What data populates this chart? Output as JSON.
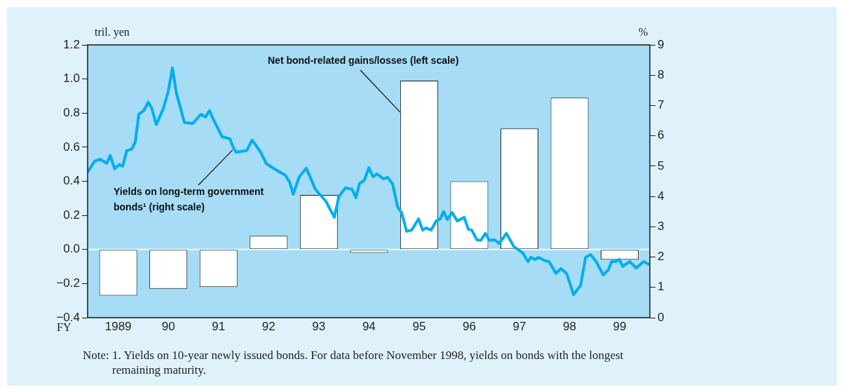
{
  "chart_data": {
    "type": "bar",
    "xlabel": "FY",
    "ylabel": "tril. yen",
    "y2label": "%",
    "xlim": [
      1988.39,
      1999.6
    ],
    "xticks": [
      {
        "value": 1989,
        "label": "1989"
      },
      {
        "value": 1990,
        "label": "90"
      },
      {
        "value": 1991,
        "label": "91"
      },
      {
        "value": 1992,
        "label": "92"
      },
      {
        "value": 1993,
        "label": "93"
      },
      {
        "value": 1994,
        "label": "94"
      },
      {
        "value": 1995,
        "label": "95"
      },
      {
        "value": 1996,
        "label": "96"
      },
      {
        "value": 1997,
        "label": "97"
      },
      {
        "value": 1998,
        "label": "98"
      },
      {
        "value": 1999,
        "label": "99"
      }
    ],
    "ylim": [
      -0.4,
      1.2
    ],
    "yticks": [
      {
        "value": -0.4,
        "label": "−0.4"
      },
      {
        "value": -0.2,
        "label": "−0.2"
      },
      {
        "value": 0,
        "label": "0.0"
      },
      {
        "value": 0.2,
        "label": "0.2"
      },
      {
        "value": 0.4,
        "label": "0.4"
      },
      {
        "value": 0.6,
        "label": "0.6"
      },
      {
        "value": 0.8,
        "label": "0.8"
      },
      {
        "value": 1,
        "label": "1.0"
      },
      {
        "value": 1.2,
        "label": "1.2"
      }
    ],
    "y2lim": [
      0,
      9
    ],
    "y2ticks": [
      0,
      1,
      2,
      3,
      4,
      5,
      6,
      7,
      8,
      9
    ],
    "grid": false,
    "legend": false,
    "ref_lines": [
      {
        "axis": "y",
        "value": 0,
        "color": "#ffffff"
      }
    ],
    "series": [
      {
        "name": "Net bond-related gains/losses (left scale)",
        "color": "#ffffff",
        "x": [
          1989,
          1990,
          1991,
          1992,
          1993,
          1994,
          1995,
          1996,
          1997,
          1998,
          1999
        ],
        "values": [
          -0.27,
          -0.23,
          -0.22,
          0.08,
          0.32,
          -0.02,
          0.99,
          0.4,
          0.71,
          0.89,
          -0.06
        ]
      },
      {
        "type": "line",
        "axis": "y2",
        "name": "Yields on long-term government bonds¹ (right scale)",
        "color": "#00aeef",
        "marker": "none",
        "x": [
          1988.39,
          1988.53,
          1988.64,
          1988.77,
          1988.84,
          1988.93,
          1989.02,
          1989.09,
          1989.17,
          1989.27,
          1989.34,
          1989.41,
          1989.51,
          1989.6,
          1989.67,
          1989.76,
          1989.9,
          1990.0,
          1990.08,
          1990.16,
          1990.32,
          1990.49,
          1990.65,
          1990.74,
          1990.82,
          1990.91,
          1991.07,
          1991.23,
          1991.28,
          1991.35,
          1991.56,
          1991.67,
          1991.84,
          1991.95,
          1992.14,
          1992.33,
          1992.42,
          1992.49,
          1992.61,
          1992.75,
          1992.93,
          1993.14,
          1993.31,
          1993.4,
          1993.53,
          1993.66,
          1993.74,
          1993.81,
          1993.91,
          1994.0,
          1994.08,
          1994.16,
          1994.29,
          1994.37,
          1994.47,
          1994.57,
          1994.65,
          1994.75,
          1994.85,
          1994.99,
          1995.07,
          1995.14,
          1995.24,
          1995.34,
          1995.42,
          1995.49,
          1995.56,
          1995.66,
          1995.76,
          1995.9,
          1995.98,
          1996.05,
          1996.15,
          1996.23,
          1996.32,
          1996.4,
          1996.5,
          1996.6,
          1996.74,
          1996.89,
          1997.06,
          1997.17,
          1997.23,
          1997.31,
          1997.38,
          1997.51,
          1997.59,
          1997.73,
          1997.83,
          1997.94,
          1998.08,
          1998.22,
          1998.32,
          1998.42,
          1998.53,
          1998.67,
          1998.77,
          1998.84,
          1998.92,
          1998.99,
          1999.06,
          1999.2,
          1999.33,
          1999.48,
          1999.58
        ],
        "values": [
          4.81,
          5.16,
          5.23,
          5.09,
          5.35,
          4.91,
          5.05,
          5.0,
          5.51,
          5.56,
          5.79,
          6.71,
          6.83,
          7.11,
          6.9,
          6.37,
          6.9,
          7.48,
          8.24,
          7.41,
          6.44,
          6.41,
          6.71,
          6.62,
          6.83,
          6.5,
          5.97,
          5.9,
          5.67,
          5.46,
          5.51,
          5.86,
          5.46,
          5.09,
          4.88,
          4.7,
          4.47,
          4.07,
          4.65,
          4.93,
          4.24,
          3.84,
          3.31,
          4.0,
          4.28,
          4.24,
          3.96,
          4.42,
          4.54,
          4.95,
          4.65,
          4.74,
          4.58,
          4.63,
          4.42,
          3.66,
          3.47,
          2.85,
          2.89,
          3.26,
          2.89,
          2.96,
          2.89,
          3.19,
          3.26,
          3.5,
          3.24,
          3.47,
          3.19,
          3.31,
          2.92,
          2.89,
          2.57,
          2.55,
          2.78,
          2.55,
          2.57,
          2.45,
          2.78,
          2.34,
          2.15,
          1.85,
          1.99,
          1.92,
          1.99,
          1.88,
          1.85,
          1.46,
          1.62,
          1.46,
          0.76,
          1.07,
          1.99,
          2.08,
          1.85,
          1.41,
          1.57,
          1.85,
          1.85,
          1.92,
          1.69,
          1.85,
          1.64,
          1.85,
          1.76
        ]
      }
    ],
    "annotations": [
      "Note: 1. Yields on 10-year newly issued bonds. For data before November 1998, yields on bonds with the longest remaining maturity."
    ]
  }
}
